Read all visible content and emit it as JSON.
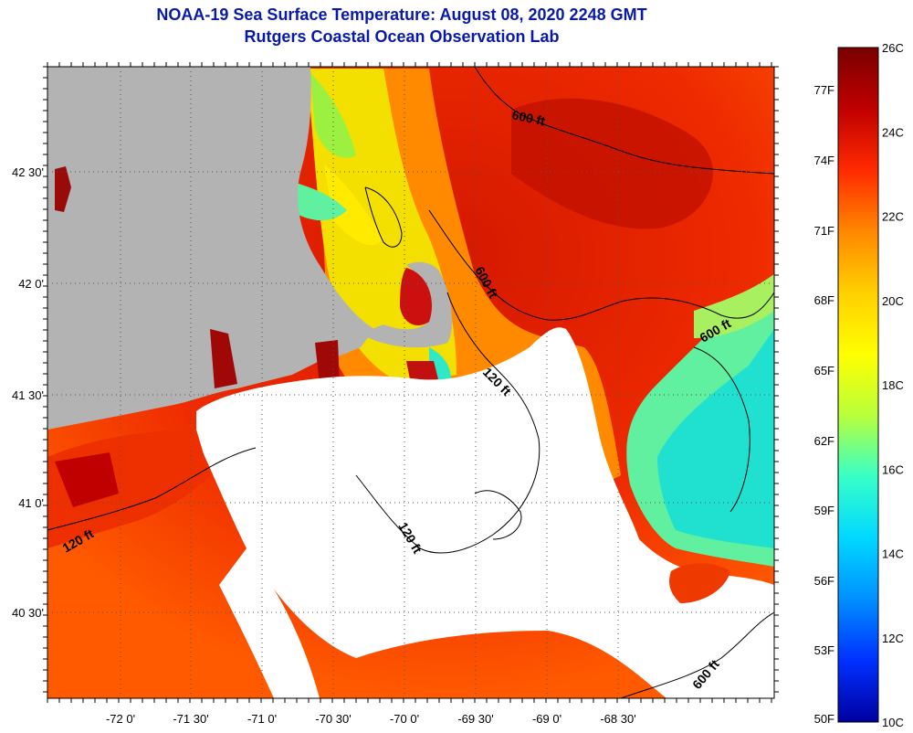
{
  "title": "NOAA-19 Sea Surface Temperature:  August 08, 2020 2248 GMT",
  "subtitle": "Rutgers Coastal Ocean Observation Lab",
  "map": {
    "longitude_labels": [
      "-72 0'",
      "-71 30'",
      "-71 0'",
      "-70 30'",
      "-70 0'",
      "-69 30'",
      "-69 0'",
      "-68 30'"
    ],
    "latitude_labels": [
      "42 30'",
      "42 0'",
      "41 30'",
      "41 0'",
      "40 30'"
    ],
    "contour_labels": [
      "600 ft",
      "600 ft",
      "600 ft",
      "600 ft",
      "120 ft",
      "120 ft",
      "120 ft"
    ],
    "colors": {
      "land": "#b3b3b3",
      "cloud_mask": "#ffffff",
      "contour": "#000000"
    }
  },
  "colorbar": {
    "celsius_labels": [
      "26C",
      "24C",
      "22C",
      "20C",
      "18C",
      "16C",
      "14C",
      "12C",
      "10C"
    ],
    "fahrenheit_labels": [
      "77F",
      "74F",
      "71F",
      "68F",
      "65F",
      "62F",
      "59F",
      "56F",
      "53F",
      "50F"
    ],
    "gradient_colors": [
      "#7a0000",
      "#c00000",
      "#ff2a00",
      "#ff8800",
      "#ffd000",
      "#ffff00",
      "#b8ff3a",
      "#38ffc8",
      "#00d8ff",
      "#0090ff",
      "#0030ff",
      "#0000a0"
    ]
  }
}
